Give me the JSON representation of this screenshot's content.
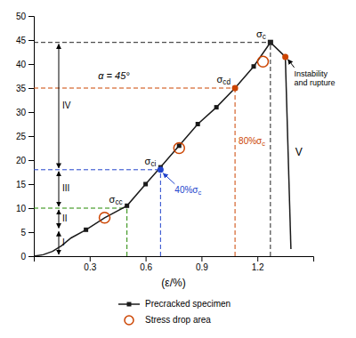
{
  "chart_data": {
    "type": "line",
    "xlabel": "(ε/%)",
    "xlim": [
      0,
      1.5
    ],
    "ylim": [
      0,
      50
    ],
    "xticks": [
      0.3,
      0.6,
      0.9,
      1.2
    ],
    "yticks": [
      0,
      5,
      10,
      15,
      20,
      25,
      30,
      35,
      40,
      45,
      50
    ],
    "series": [
      {
        "name": "Precracked specimen",
        "color": "#1a1a1a",
        "marker": "square",
        "x": [
          0.0,
          0.05,
          0.1,
          0.15,
          0.2,
          0.28,
          0.38,
          0.5,
          0.6,
          0.68,
          0.78,
          0.88,
          0.98,
          1.08,
          1.18,
          1.27,
          1.35
        ],
        "values": [
          0.0,
          0.3,
          1.0,
          2.2,
          3.8,
          5.5,
          8.0,
          10.5,
          15.0,
          18.5,
          23.0,
          27.5,
          31.0,
          35.0,
          39.5,
          44.5,
          41.5
        ],
        "marker_x": [
          0.28,
          0.5,
          0.6,
          0.68,
          0.78,
          0.88,
          0.98,
          1.08,
          1.18,
          1.27
        ],
        "marker_values": [
          5.5,
          10.5,
          15.0,
          18.5,
          23.0,
          27.5,
          31.0,
          35.0,
          39.5,
          44.5
        ]
      }
    ],
    "drop": {
      "label": "V",
      "color": "#1a1a1a",
      "x": [
        1.35,
        1.38
      ],
      "values": [
        41.5,
        1.5
      ]
    },
    "stress_drop_areas": {
      "name": "Stress drop area",
      "color": "#cc4400",
      "marker": "circle",
      "x": [
        0.38,
        0.78,
        1.23
      ],
      "values": [
        8.0,
        22.5,
        40.5
      ]
    },
    "levels": [
      {
        "label": "σcc",
        "x": 0.5,
        "y": 10.0,
        "color": "#228800"
      },
      {
        "label": "σci",
        "x": 0.68,
        "y": 18.0,
        "color": "#2244cc",
        "marker": "circle"
      },
      {
        "label": "σcd",
        "x": 1.08,
        "y": 35.0,
        "color": "#cc4400",
        "marker": "circle",
        "note": "80%σc"
      },
      {
        "label": "σc",
        "x": 1.27,
        "y": 44.5,
        "color": "#222222",
        "marker": "square"
      }
    ],
    "instability": {
      "label": "Instability\nand rupture",
      "color": "#cc4400",
      "x": 1.35,
      "y": 41.5
    },
    "annotations": [
      {
        "text": "α = 45°"
      },
      {
        "text": "40%σc",
        "color": "#2244cc",
        "x": 0.68,
        "y": 18.0
      }
    ],
    "regions": [
      {
        "label": "I",
        "y": [
          0,
          5.5
        ]
      },
      {
        "label": "II",
        "y": [
          5.5,
          10.0
        ]
      },
      {
        "label": "III",
        "y": [
          10.0,
          18.0
        ]
      },
      {
        "label": "IV",
        "y": [
          18.0,
          44.5
        ]
      }
    ]
  }
}
